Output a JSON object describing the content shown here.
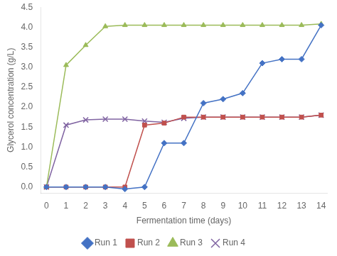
{
  "chart_data": {
    "type": "line",
    "x": [
      0,
      1,
      2,
      3,
      4,
      5,
      6,
      7,
      8,
      9,
      10,
      11,
      12,
      13,
      14
    ],
    "series": [
      {
        "name": "Run 1",
        "color": "#4472C4",
        "marker": "diamond",
        "values": [
          0.0,
          0.0,
          0.0,
          0.0,
          -0.05,
          0.0,
          1.1,
          1.1,
          2.1,
          2.2,
          2.35,
          3.1,
          3.2,
          3.2,
          4.05
        ]
      },
      {
        "name": "Run 2",
        "color": "#C0504D",
        "marker": "square",
        "values": [
          0.0,
          0.0,
          0.0,
          0.0,
          0.0,
          1.55,
          1.6,
          1.75,
          1.75,
          1.75,
          1.75,
          1.75,
          1.75,
          1.75,
          1.8
        ]
      },
      {
        "name": "Run 3",
        "color": "#9BBB59",
        "marker": "triangle",
        "values": [
          0.0,
          3.05,
          3.55,
          4.02,
          4.05,
          4.05,
          4.05,
          4.05,
          4.05,
          4.05,
          4.05,
          4.05,
          4.05,
          4.05,
          4.08
        ]
      },
      {
        "name": "Run 4",
        "color": "#8064A2",
        "marker": "x",
        "values": [
          0.0,
          1.55,
          1.68,
          1.7,
          1.7,
          1.65,
          1.62,
          1.72,
          1.75,
          1.75,
          1.75,
          1.75,
          1.75,
          1.75,
          1.8
        ]
      }
    ],
    "xlabel": "Fermentation time (days)",
    "ylabel": "Glycerol concentration (g/L)",
    "xlim": [
      -0.3,
      14.3
    ],
    "ylim": [
      -0.15,
      4.5
    ],
    "xticks": [
      0,
      1,
      2,
      3,
      4,
      5,
      6,
      7,
      8,
      9,
      10,
      11,
      12,
      13,
      14
    ],
    "yticks": [
      {
        "value": 0,
        "label": "0.0"
      },
      0.5,
      {
        "value": 1,
        "label": "1.0"
      },
      1.5,
      {
        "value": 2,
        "label": "2.0"
      },
      2.5,
      {
        "value": 3,
        "label": "3.0"
      },
      3.5,
      {
        "value": 4,
        "label": "4.0"
      },
      4.5
    ],
    "grid": false,
    "legend": "bottom"
  }
}
